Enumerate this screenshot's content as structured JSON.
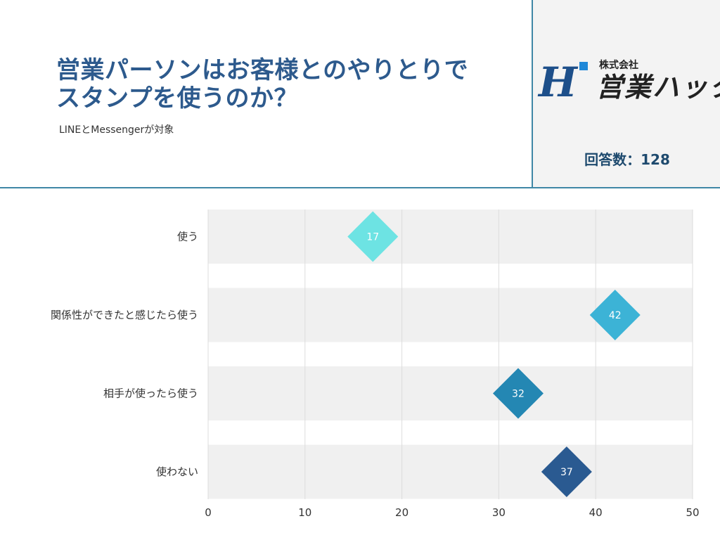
{
  "header": {
    "title_line1": "営業パーソンはお客様とのやりとりで",
    "title_line2": "スタンプを使うのか？",
    "subtitle": "LINEとMessengerが対象"
  },
  "logo": {
    "mark": "H",
    "small_text": "株式会社",
    "big_text": "営業ハック"
  },
  "respondents_label": "回答数：128",
  "colors": {
    "title": "#2d5a8d",
    "rule": "#3f87a6",
    "bar_bg": "#f0f0f0",
    "grid": "#dddddd",
    "marker_1": "#6de3e3",
    "marker_2": "#3cb3d6",
    "marker_3": "#2487b3",
    "marker_4": "#2a5a91"
  },
  "chart_data": {
    "type": "bar",
    "orientation": "horizontal",
    "categories": [
      "使う",
      "関係性ができたと感じたら使う",
      "相手が使ったら使う",
      "使わない"
    ],
    "values": [
      17,
      42,
      32,
      37
    ],
    "xlim": [
      0,
      50
    ],
    "xticks": [
      0,
      10,
      20,
      30,
      40,
      50
    ],
    "grid": true,
    "data_labels": true
  }
}
